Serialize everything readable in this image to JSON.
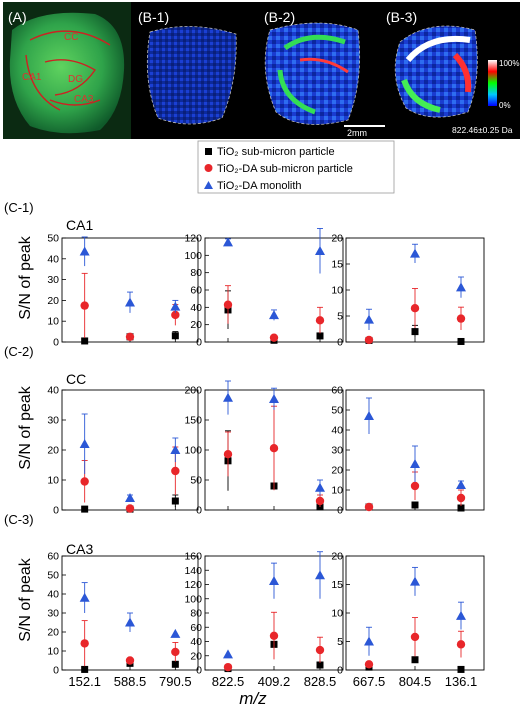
{
  "top_row": {
    "panels": [
      {
        "label": "(A)",
        "regions": [
          "CC",
          "CA1",
          "DG",
          "CA3"
        ]
      },
      {
        "label": "(B-1)"
      },
      {
        "label": "(B-2)"
      },
      {
        "label": "(B-3)"
      }
    ],
    "colorbar": {
      "max_label": "100%",
      "min_label": "0%"
    },
    "scale_bar": "2mm",
    "mass_label": "822.46±0.25 Da"
  },
  "legend": {
    "entries": [
      {
        "name": "TiO₂ sub-micron particle",
        "marker": "square",
        "color": "#000000"
      },
      {
        "name": "TiO₂-DA sub-micron particle",
        "marker": "circle",
        "color": "#e8262a"
      },
      {
        "name": "TiO₂-DA monolith",
        "marker": "triangle",
        "color": "#2b57d6"
      }
    ]
  },
  "ylabel": "S/N of peak",
  "xlabel": "m/z",
  "colors": {
    "series0": "#000000",
    "series1": "#e8262a",
    "series2": "#2b57d6",
    "errbar": "#e8262a",
    "errbar_blue": "#2b57d6"
  },
  "chart_data": [
    {
      "type": "scatter",
      "row_label": "(C-1)",
      "region": "CA1",
      "categories": [
        "152.1",
        "588.5",
        "790.5"
      ],
      "ylim": [
        0,
        50
      ],
      "yticks": [
        0,
        10,
        20,
        30,
        40,
        50
      ],
      "series": [
        {
          "values": [
            0.5,
            2.5,
            3
          ],
          "err": [
            0,
            0,
            2
          ]
        },
        {
          "values": [
            17.5,
            2.5,
            13
          ],
          "err": [
            15.5,
            0,
            5
          ]
        },
        {
          "values": [
            43.5,
            19,
            17
          ],
          "err": [
            7,
            5,
            3
          ]
        }
      ]
    },
    {
      "type": "scatter",
      "row_label": "",
      "region": "",
      "categories": [
        "822.5",
        "409.2",
        "828.5"
      ],
      "ylim": [
        0,
        120
      ],
      "yticks": [
        0,
        20,
        40,
        60,
        80,
        100,
        120
      ],
      "series": [
        {
          "values": [
            37,
            2,
            7
          ],
          "err": [
            22,
            0,
            0
          ]
        },
        {
          "values": [
            43,
            5,
            25
          ],
          "err": [
            22,
            0,
            15
          ]
        },
        {
          "values": [
            115,
            31,
            105
          ],
          "err": [
            4,
            6,
            26
          ]
        }
      ]
    },
    {
      "type": "scatter",
      "row_label": "",
      "region": "",
      "categories": [
        "667.5",
        "804.5",
        "136.1"
      ],
      "ylim": [
        0,
        20
      ],
      "yticks": [
        0,
        5,
        10,
        15,
        20
      ],
      "series": [
        {
          "values": [
            0.3,
            2,
            0.1
          ],
          "err": [
            0,
            1.2,
            0
          ]
        },
        {
          "values": [
            0.4,
            6.5,
            4.5
          ],
          "err": [
            0,
            3.8,
            2.2
          ]
        },
        {
          "values": [
            4.3,
            17,
            10.5
          ],
          "err": [
            2,
            1.8,
            2
          ]
        }
      ]
    },
    {
      "type": "scatter",
      "row_label": "(C-2)",
      "region": "CC",
      "categories": [
        "152.1",
        "588.5",
        "790.5"
      ],
      "ylim": [
        0,
        40
      ],
      "yticks": [
        0,
        10,
        20,
        30,
        40
      ],
      "series": [
        {
          "values": [
            0.3,
            0.3,
            3
          ],
          "err": [
            0,
            0,
            2
          ]
        },
        {
          "values": [
            9.5,
            0.5,
            13
          ],
          "err": [
            7,
            0,
            8
          ]
        },
        {
          "values": [
            22,
            4,
            20
          ],
          "err": [
            10,
            1,
            4
          ]
        }
      ]
    },
    {
      "type": "scatter",
      "row_label": "",
      "region": "",
      "categories": [
        "822.5",
        "409.2",
        "828.5"
      ],
      "ylim": [
        0,
        200
      ],
      "yticks": [
        0,
        50,
        100,
        150,
        200
      ],
      "series": [
        {
          "values": [
            82,
            40,
            5
          ],
          "err": [
            50,
            0,
            0
          ]
        },
        {
          "values": [
            93,
            103,
            15
          ],
          "err": [
            37,
            70,
            10
          ]
        },
        {
          "values": [
            187,
            185,
            37
          ],
          "err": [
            28,
            18,
            13
          ]
        }
      ]
    },
    {
      "type": "scatter",
      "row_label": "",
      "region": "",
      "categories": [
        "667.5",
        "804.5",
        "136.1"
      ],
      "ylim": [
        0,
        60
      ],
      "yticks": [
        0,
        10,
        20,
        30,
        40,
        50,
        60
      ],
      "series": [
        {
          "values": [
            1.5,
            2.5,
            1
          ],
          "err": [
            0,
            0,
            0
          ]
        },
        {
          "values": [
            1.5,
            12,
            6
          ],
          "err": [
            0,
            7,
            4
          ]
        },
        {
          "values": [
            47,
            23,
            12.5
          ],
          "err": [
            9,
            9,
            2
          ]
        }
      ]
    },
    {
      "type": "scatter",
      "row_label": "(C-3)",
      "region": "CA3",
      "categories": [
        "152.1",
        "588.5",
        "790.5"
      ],
      "ylim": [
        0,
        60
      ],
      "yticks": [
        0,
        10,
        20,
        30,
        40,
        50,
        60
      ],
      "series": [
        {
          "values": [
            0.3,
            3.5,
            3
          ],
          "err": [
            0,
            1,
            1
          ]
        },
        {
          "values": [
            14,
            5,
            9.5
          ],
          "err": [
            12,
            0,
            5
          ]
        },
        {
          "values": [
            38,
            25,
            19
          ],
          "err": [
            8,
            5,
            0
          ]
        }
      ]
    },
    {
      "type": "scatter",
      "row_label": "",
      "region": "",
      "categories": [
        "822.5",
        "409.2",
        "828.5"
      ],
      "ylim": [
        0,
        160
      ],
      "yticks": [
        0,
        20,
        40,
        60,
        80,
        100,
        120,
        140,
        160
      ],
      "series": [
        {
          "values": [
            2,
            36,
            7
          ],
          "err": [
            0,
            0,
            0
          ]
        },
        {
          "values": [
            4,
            48,
            28
          ],
          "err": [
            0,
            33,
            18
          ]
        },
        {
          "values": [
            22,
            125,
            133
          ],
          "err": [
            0,
            25,
            33
          ]
        }
      ]
    },
    {
      "type": "scatter",
      "row_label": "",
      "region": "",
      "categories": [
        "667.5",
        "804.5",
        "136.1"
      ],
      "ylim": [
        0,
        20
      ],
      "yticks": [
        0,
        5,
        10,
        15,
        20
      ],
      "series": [
        {
          "values": [
            0.5,
            1.8,
            0.1
          ],
          "err": [
            0,
            0,
            0
          ]
        },
        {
          "values": [
            1,
            5.8,
            4.5
          ],
          "err": [
            0,
            3.4,
            2.3
          ]
        },
        {
          "values": [
            5,
            15.5,
            9.5
          ],
          "err": [
            2.5,
            2.5,
            2.4
          ]
        }
      ]
    }
  ]
}
